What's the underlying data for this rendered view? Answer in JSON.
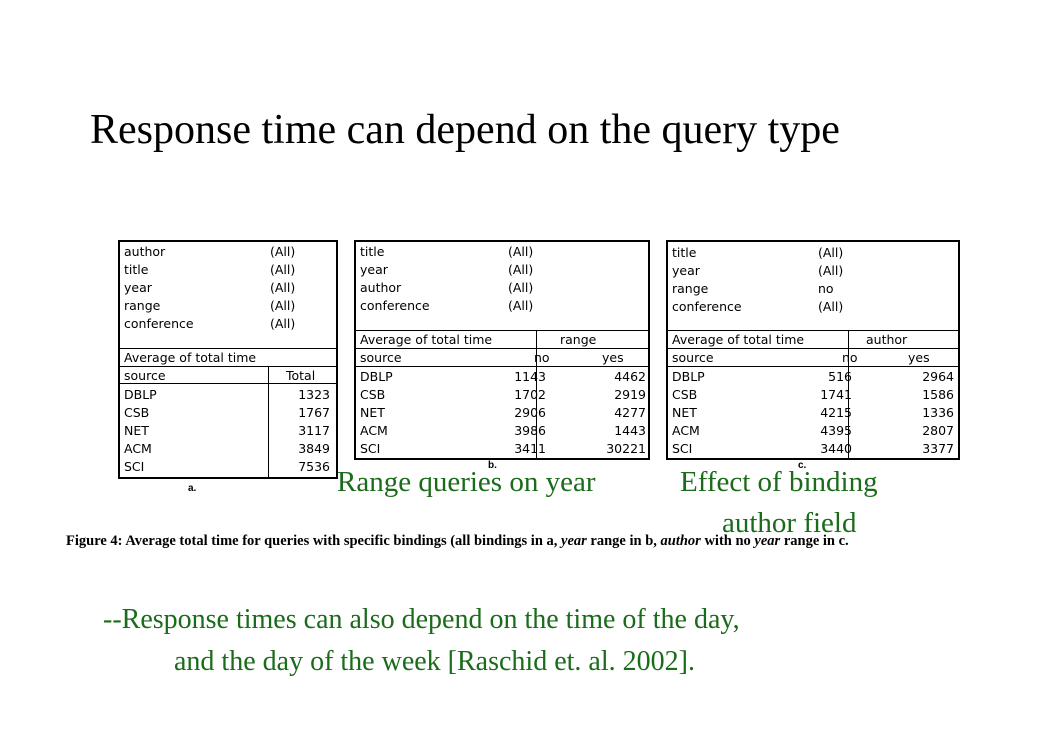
{
  "slide": {
    "title": "Response time can depend on the query type",
    "label_b": "Range queries on year",
    "label_c_line1": "Effect of binding",
    "label_c_line2": "author field",
    "footer_line1": "--Response times can also depend on the time of the day,",
    "footer_line2": "and the day of the week  [Raschid et. al. 2002]."
  },
  "figure": {
    "caption_prefix": "Figure 4:",
    "caption_part1": "  Average total time for queries with specific bindings (all bindings in a, ",
    "caption_em1": "year",
    "caption_part2": " range in b, ",
    "caption_em2": "author",
    "caption_part3": " with no ",
    "caption_em3": "year",
    "caption_part4": " range in c.",
    "label_a": "a.",
    "label_b": "b.",
    "label_c": "c."
  },
  "table_a": {
    "filters": [
      {
        "field": "author",
        "value": "(All)"
      },
      {
        "field": "title",
        "value": "(All)"
      },
      {
        "field": "year",
        "value": "(All)"
      },
      {
        "field": "range",
        "value": "(All)"
      },
      {
        "field": "conference",
        "value": "(All)"
      }
    ],
    "measure": "Average of total time",
    "col_source": "source",
    "col_total": "Total",
    "rows": [
      {
        "source": "DBLP",
        "total": "1323"
      },
      {
        "source": "CSB",
        "total": "1767"
      },
      {
        "source": "NET",
        "total": "3117"
      },
      {
        "source": "ACM",
        "total": "3849"
      },
      {
        "source": "SCI",
        "total": "7536"
      }
    ]
  },
  "table_b": {
    "filters": [
      {
        "field": "title",
        "value": "(All)"
      },
      {
        "field": "year",
        "value": "(All)"
      },
      {
        "field": "author",
        "value": "(All)"
      },
      {
        "field": "conference",
        "value": "(All)"
      }
    ],
    "measure": "Average of total time",
    "pivot": "range",
    "col_source": "source",
    "col_no": "no",
    "col_yes": "yes",
    "rows": [
      {
        "source": "DBLP",
        "no": "1143",
        "yes": "4462"
      },
      {
        "source": "CSB",
        "no": "1702",
        "yes": "2919"
      },
      {
        "source": "NET",
        "no": "2906",
        "yes": "4277"
      },
      {
        "source": "ACM",
        "no": "3986",
        "yes": "1443"
      },
      {
        "source": "SCI",
        "no": "3411",
        "yes": "30221"
      }
    ]
  },
  "table_c": {
    "filters": [
      {
        "field": "title",
        "value": "(All)"
      },
      {
        "field": "year",
        "value": "(All)"
      },
      {
        "field": "range",
        "value": "no"
      },
      {
        "field": "conference",
        "value": "(All)"
      }
    ],
    "measure": "Average of total time",
    "pivot": "author",
    "col_source": "source",
    "col_no": "no",
    "col_yes": "yes",
    "rows": [
      {
        "source": "DBLP",
        "no": "516",
        "yes": "2964"
      },
      {
        "source": "CSB",
        "no": "1741",
        "yes": "1586"
      },
      {
        "source": "NET",
        "no": "4215",
        "yes": "1336"
      },
      {
        "source": "ACM",
        "no": "4395",
        "yes": "2807"
      },
      {
        "source": "SCI",
        "no": "3440",
        "yes": "3377"
      }
    ]
  }
}
